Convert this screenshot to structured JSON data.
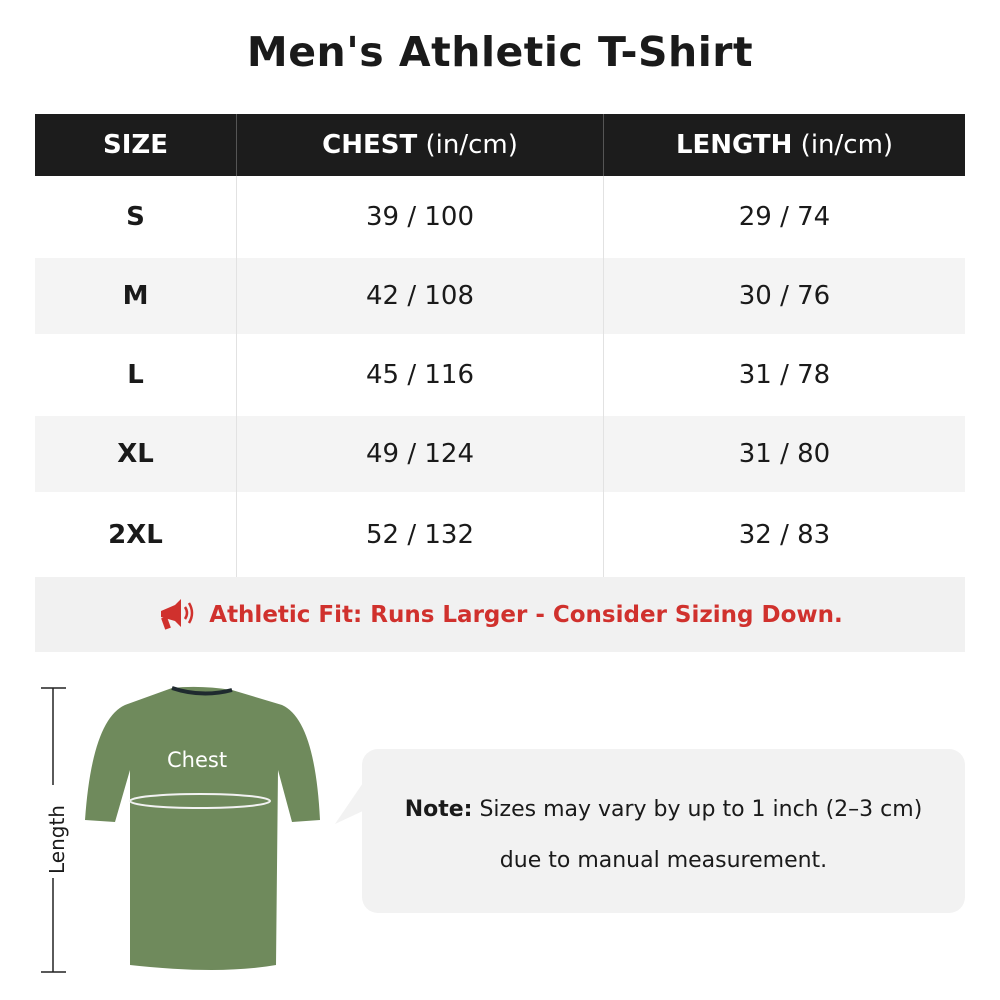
{
  "title": "Men's Athletic T-Shirt",
  "table": {
    "headers": [
      {
        "bold": "SIZE",
        "unit": ""
      },
      {
        "bold": "CHEST",
        "unit": " (in/cm)"
      },
      {
        "bold": "LENGTH",
        "unit": " (in/cm)"
      }
    ],
    "rows": [
      {
        "size": "S",
        "chest": "39 / 100",
        "length": "29 / 74"
      },
      {
        "size": "M",
        "chest": "42 / 108",
        "length": "30 / 76"
      },
      {
        "size": "L",
        "chest": "45 / 116",
        "length": "31 / 78"
      },
      {
        "size": "XL",
        "chest": "49 / 124",
        "length": "31 / 80"
      },
      {
        "size": "2XL",
        "chest": "52 / 132",
        "length": "32 / 83"
      }
    ],
    "fit_note": "Athletic Fit: Runs Larger - Consider Sizing Down.",
    "fit_note_icon": "megaphone-icon"
  },
  "diagram": {
    "chest_label": "Chest",
    "length_label": "Length",
    "shirt_color": "#6f8a5c"
  },
  "note": {
    "bold": "Note:",
    "line1": " Sizes may vary by up to 1 inch (2–3 cm)",
    "line2": "due to manual measurement."
  },
  "colors": {
    "header_bg": "#1c1c1c",
    "accent_red": "#d0312d",
    "alt_row": "#f4f4f4"
  }
}
